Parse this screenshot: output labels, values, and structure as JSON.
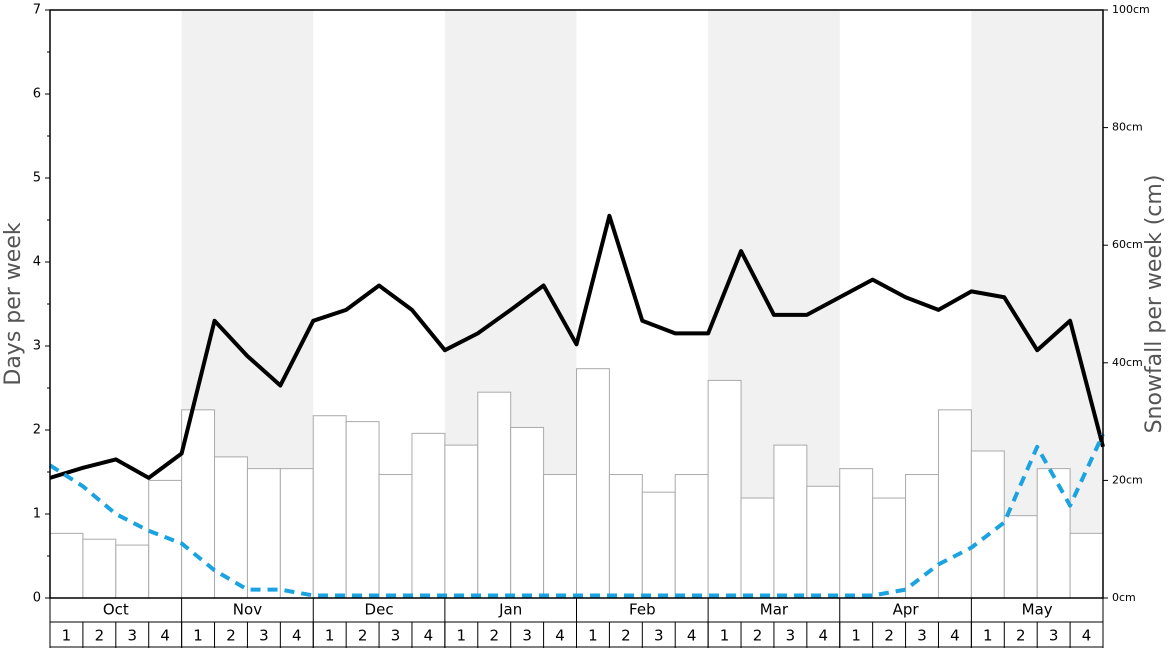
{
  "chart_data": {
    "type": "bar",
    "months": [
      "Oct",
      "Nov",
      "Dec",
      "Jan",
      "Feb",
      "Mar",
      "Apr",
      "May"
    ],
    "categories": [
      "1",
      "2",
      "3",
      "4",
      "1",
      "2",
      "3",
      "4",
      "1",
      "2",
      "3",
      "4",
      "1",
      "2",
      "3",
      "4",
      "1",
      "2",
      "3",
      "4",
      "1",
      "2",
      "3",
      "4",
      "1",
      "2",
      "3",
      "4",
      "1",
      "2",
      "3",
      "4"
    ],
    "ylabel": "Days per week",
    "y2label": "Snowfall per week (cm)",
    "ylim": [
      0,
      7
    ],
    "yticks": [
      0,
      1,
      2,
      3,
      4,
      5,
      6,
      7
    ],
    "y2lim": [
      0,
      100
    ],
    "y2ticks": [
      {
        "value": 0,
        "label": "0cm"
      },
      {
        "value": 20,
        "label": "20cm"
      },
      {
        "value": 40,
        "label": "40cm"
      },
      {
        "value": 60,
        "label": "60cm"
      },
      {
        "value": 80,
        "label": "80cm"
      },
      {
        "value": 100,
        "label": "100cm"
      }
    ],
    "axis": "y2",
    "color": "#ffffff",
    "values": [
      11,
      10,
      9,
      20,
      32,
      24,
      22,
      22,
      31,
      30,
      21,
      28,
      26,
      35,
      29,
      21,
      39,
      21,
      18,
      21,
      37,
      17,
      26,
      19,
      22,
      17,
      21,
      32,
      25,
      14,
      22,
      11
    ],
    "lines": [
      {
        "type": "line",
        "color": "#000000",
        "dash": false,
        "xlim": [
          0,
          32
        ],
        "x": [
          0,
          1,
          2,
          3,
          4,
          5,
          6,
          7,
          8,
          9,
          10,
          11,
          12,
          13,
          14,
          15,
          16,
          17,
          18,
          19,
          20,
          21,
          22,
          23,
          24,
          25,
          26,
          27,
          28,
          29,
          30,
          31,
          32
        ],
        "values": [
          1.43,
          1.55,
          1.65,
          1.43,
          1.72,
          3.3,
          2.88,
          2.53,
          3.3,
          3.43,
          3.72,
          3.43,
          2.95,
          3.15,
          3.43,
          3.72,
          3.02,
          4.55,
          3.3,
          3.15,
          3.15,
          4.13,
          3.37,
          3.37,
          3.58,
          3.79,
          3.58,
          3.43,
          3.65,
          3.58,
          2.95,
          3.3,
          1.8
        ]
      },
      {
        "type": "line",
        "color": "#1aa3e0",
        "dash": true,
        "xlim": [
          0,
          32
        ],
        "x": [
          0,
          1,
          2,
          3,
          4,
          5,
          6,
          7,
          8,
          9,
          10,
          11,
          12,
          13,
          14,
          15,
          16,
          17,
          18,
          19,
          20,
          21,
          22,
          23,
          24,
          25,
          26,
          27,
          28,
          29,
          30,
          31,
          32
        ],
        "values": [
          1.58,
          1.33,
          1.0,
          0.8,
          0.65,
          0.33,
          0.1,
          0.1,
          0.03,
          0.03,
          0.03,
          0.03,
          0.03,
          0.03,
          0.03,
          0.03,
          0.03,
          0.03,
          0.03,
          0.03,
          0.03,
          0.03,
          0.03,
          0.03,
          0.03,
          0.03,
          0.1,
          0.4,
          0.6,
          0.9,
          1.8,
          1.1,
          1.95
        ]
      }
    ]
  }
}
